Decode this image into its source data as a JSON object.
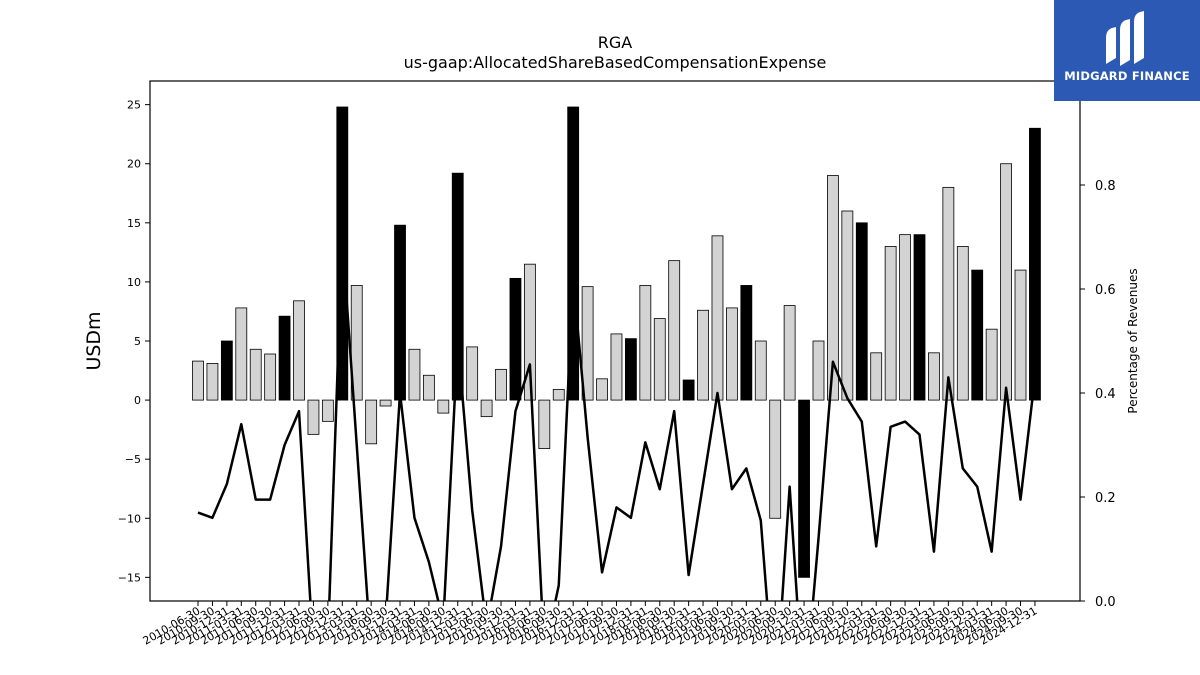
{
  "chart_data": {
    "type": "bar",
    "title": "RGA",
    "subtitle": "us-gaap:AllocatedShareBasedCompensationExpense",
    "ylabel": "USDm",
    "y2label": "Percentage of Revenues",
    "ylim": [
      -17,
      27
    ],
    "y2lim": [
      0.0,
      1.0
    ],
    "yticks": [
      -15,
      -10,
      -5,
      0,
      5,
      10,
      15,
      20,
      25
    ],
    "y2ticks": [
      "0.0",
      "0.2",
      "0.4",
      "0.6",
      "0.8"
    ],
    "bar_colors": {
      "quarter": "#d3d3d3",
      "annual": "#000000"
    },
    "line_color": "#000000",
    "categories": [
      "2010-06-30",
      "2010-09-30",
      "2010-12-31",
      "2011-03-31",
      "2011-06-30",
      "2011-09-30",
      "2011-12-31",
      "2012-03-31",
      "2012-06-30",
      "2012-09-30",
      "2012-12-31",
      "2013-03-31",
      "2013-06-30",
      "2013-09-30",
      "2013-12-31",
      "2014-03-31",
      "2014-06-30",
      "2014-09-30",
      "2014-12-31",
      "2015-03-31",
      "2015-06-30",
      "2015-09-30",
      "2015-12-31",
      "2016-03-31",
      "2016-06-30",
      "2016-09-30",
      "2016-12-31",
      "2017-03-31",
      "2017-06-30",
      "2017-09-30",
      "2017-12-31",
      "2018-03-31",
      "2018-06-30",
      "2018-09-30",
      "2018-12-31",
      "2019-03-31",
      "2019-06-30",
      "2019-09-30",
      "2019-12-31",
      "2020-03-31",
      "2020-06-30",
      "2020-09-30",
      "2020-12-31",
      "2021-03-31",
      "2021-06-30",
      "2021-09-30",
      "2021-12-31",
      "2022-03-31",
      "2022-06-30",
      "2022-09-30",
      "2022-12-31",
      "2023-03-31",
      "2023-06-30",
      "2023-09-30",
      "2023-12-31",
      "2024-03-31",
      "2024-06-30",
      "2024-09-30",
      "2024-12-31"
    ],
    "values": [
      3.3,
      3.1,
      5.0,
      7.8,
      4.3,
      3.9,
      7.1,
      8.4,
      -2.9,
      -1.8,
      24.8,
      9.7,
      -3.7,
      -0.5,
      14.8,
      4.3,
      2.1,
      -1.1,
      19.2,
      4.5,
      -1.4,
      2.6,
      10.3,
      11.5,
      -4.1,
      0.9,
      24.8,
      9.6,
      1.8,
      5.6,
      5.2,
      9.7,
      6.9,
      11.8,
      1.7,
      7.6,
      13.9,
      7.8,
      9.7,
      5.0,
      -10.0,
      8.0,
      -15.0,
      5.0,
      19.0,
      16.0,
      15.0,
      4.0,
      13.0,
      14.0,
      14.0,
      4.0,
      18.0,
      13.0,
      11.0,
      6.0,
      20.0,
      11.0,
      23.0
    ],
    "annual": [
      false,
      false,
      true,
      false,
      false,
      false,
      true,
      false,
      false,
      false,
      true,
      false,
      false,
      false,
      true,
      false,
      false,
      false,
      true,
      false,
      false,
      false,
      true,
      false,
      false,
      false,
      true,
      false,
      false,
      false,
      true,
      false,
      false,
      false,
      true,
      false,
      false,
      false,
      true,
      false,
      false,
      false,
      true,
      false,
      false,
      false,
      true,
      false,
      false,
      false,
      true,
      false,
      false,
      false,
      true,
      false,
      false,
      false,
      true
    ],
    "pct_revenues": [
      0.17,
      0.16,
      0.225,
      0.34,
      0.195,
      0.195,
      0.3,
      0.365,
      -0.1,
      -0.08,
      0.7,
      0.3,
      -0.1,
      -0.04,
      0.4,
      0.16,
      0.075,
      -0.04,
      0.5,
      0.175,
      -0.05,
      0.105,
      0.365,
      0.455,
      -0.1,
      0.03,
      0.62,
      0.315,
      0.055,
      0.18,
      0.16,
      0.305,
      0.215,
      0.365,
      0.05,
      0.225,
      0.4,
      0.215,
      0.255,
      0.155,
      -0.2,
      0.22,
      -0.2,
      0.12,
      0.46,
      0.39,
      0.345,
      0.105,
      0.335,
      0.345,
      0.32,
      0.095,
      0.43,
      0.255,
      0.22,
      0.095,
      0.41,
      0.195,
      0.43
    ]
  }
}
